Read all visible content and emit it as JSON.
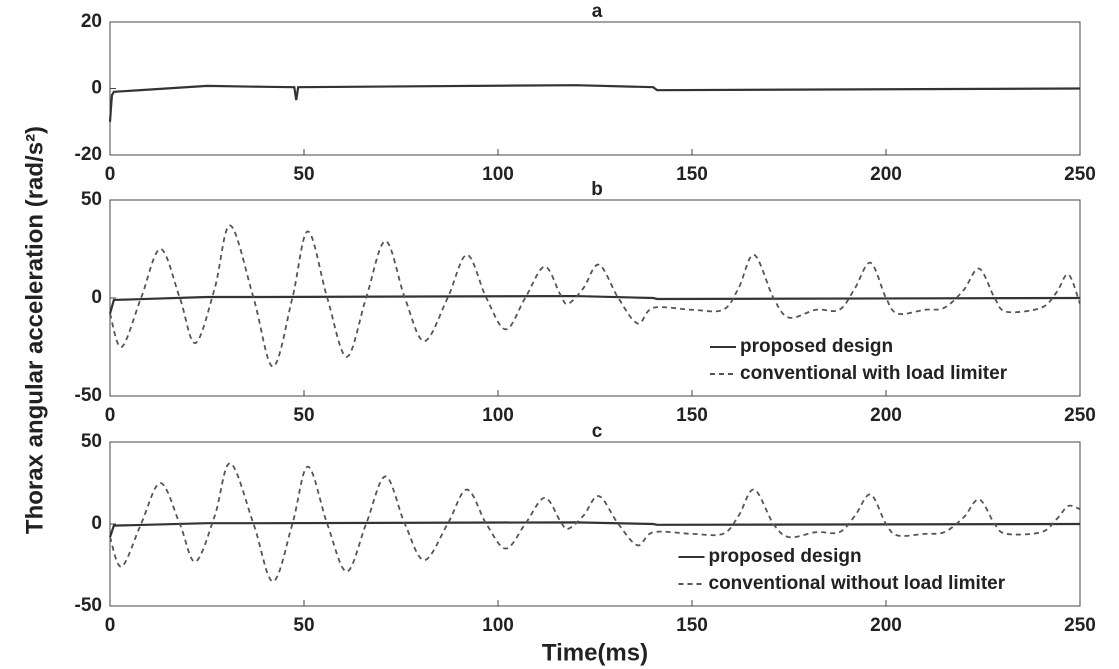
{
  "ylabel": "Thorax angular acceleration (rad/s²)",
  "xlabel": "Time(ms)",
  "chart_data": [
    {
      "type": "line",
      "title": "a",
      "xlim": [
        0,
        250
      ],
      "xticks": [
        0,
        50,
        100,
        150,
        200,
        250
      ],
      "ylim": [
        -20,
        20
      ],
      "yticks": [
        -20,
        0,
        20
      ],
      "series": [
        {
          "color": "#333333",
          "style": "solid",
          "x": [
            0,
            0.5,
            1,
            25,
            40,
            47.5,
            48,
            48.5,
            120,
            140,
            141,
            250
          ],
          "values": [
            -10,
            -2,
            -1,
            0.8,
            0.5,
            0.4,
            -3.5,
            0.4,
            1,
            0.4,
            -0.5,
            0
          ]
        }
      ]
    },
    {
      "type": "line",
      "title": "b",
      "xlim": [
        0,
        250
      ],
      "xticks": [
        0,
        50,
        100,
        150,
        200,
        250
      ],
      "ylim": [
        -50,
        50
      ],
      "yticks": [
        -50,
        0,
        50
      ],
      "legend": "lower right",
      "series": [
        {
          "name": "proposed design",
          "color": "#333333",
          "style": "solid",
          "x": [
            0,
            1,
            25,
            40,
            120,
            140,
            141,
            250
          ],
          "values": [
            -8,
            -1,
            0.5,
            0.5,
            1,
            0,
            -0.5,
            0
          ]
        },
        {
          "name": "conventional with load limiter",
          "color": "#555555",
          "style": "dashed",
          "x": [
            0,
            3,
            8,
            13,
            18,
            22,
            27,
            31,
            37,
            42,
            47,
            51,
            56,
            61,
            66,
            71,
            76,
            81,
            87,
            92,
            97,
            102,
            107,
            112,
            116,
            118,
            122,
            126,
            131,
            136,
            140,
            150,
            158,
            162,
            166,
            171,
            175,
            182,
            188,
            192,
            196,
            200,
            203,
            210,
            215,
            220,
            224,
            228,
            231,
            240,
            244,
            247,
            250
          ],
          "values": [
            -8,
            -25,
            0,
            25,
            0,
            -23,
            5,
            37,
            0,
            -35,
            0,
            34,
            0,
            -30,
            0,
            29,
            0,
            -22,
            0,
            22,
            0,
            -16,
            0,
            16,
            2,
            -3,
            5,
            17,
            0,
            -13,
            -5,
            -6,
            -6,
            5,
            22,
            0,
            -10,
            -6,
            -6,
            5,
            18,
            0,
            -8,
            -6,
            -5,
            4,
            15,
            0,
            -7,
            -5,
            3,
            12,
            -3
          ]
        }
      ]
    },
    {
      "type": "line",
      "title": "c",
      "xlim": [
        0,
        250
      ],
      "xticks": [
        0,
        50,
        100,
        150,
        200,
        250
      ],
      "ylim": [
        -50,
        50
      ],
      "yticks": [
        -50,
        0,
        50
      ],
      "legend": "lower right",
      "series": [
        {
          "name": "proposed design",
          "color": "#333333",
          "style": "solid",
          "x": [
            0,
            1,
            25,
            40,
            120,
            140,
            141,
            250
          ],
          "values": [
            -8,
            -1,
            0.5,
            0.5,
            1,
            0,
            -0.5,
            0
          ]
        },
        {
          "name": "conventional without load limiter",
          "color": "#555555",
          "style": "dashed",
          "x": [
            0,
            3,
            8,
            13,
            18,
            22,
            27,
            31,
            37,
            42,
            47,
            51,
            56,
            61,
            66,
            71,
            76,
            81,
            87,
            92,
            97,
            102,
            107,
            112,
            116,
            118,
            122,
            126,
            131,
            136,
            140,
            150,
            158,
            162,
            166,
            171,
            175,
            182,
            188,
            192,
            196,
            200,
            203,
            210,
            215,
            220,
            224,
            228,
            231,
            240,
            244,
            247,
            250
          ],
          "values": [
            -8,
            -26,
            0,
            25,
            0,
            -23,
            5,
            37,
            0,
            -35,
            0,
            35,
            0,
            -29,
            0,
            29,
            0,
            -22,
            0,
            21,
            0,
            -15,
            0,
            16,
            2,
            -3,
            5,
            17,
            0,
            -13,
            -5,
            -6,
            -6,
            5,
            21,
            0,
            -8,
            -5,
            -5,
            5,
            18,
            0,
            -7,
            -6,
            -5,
            4,
            15,
            0,
            -6,
            -5,
            3,
            11,
            9
          ]
        }
      ]
    }
  ]
}
